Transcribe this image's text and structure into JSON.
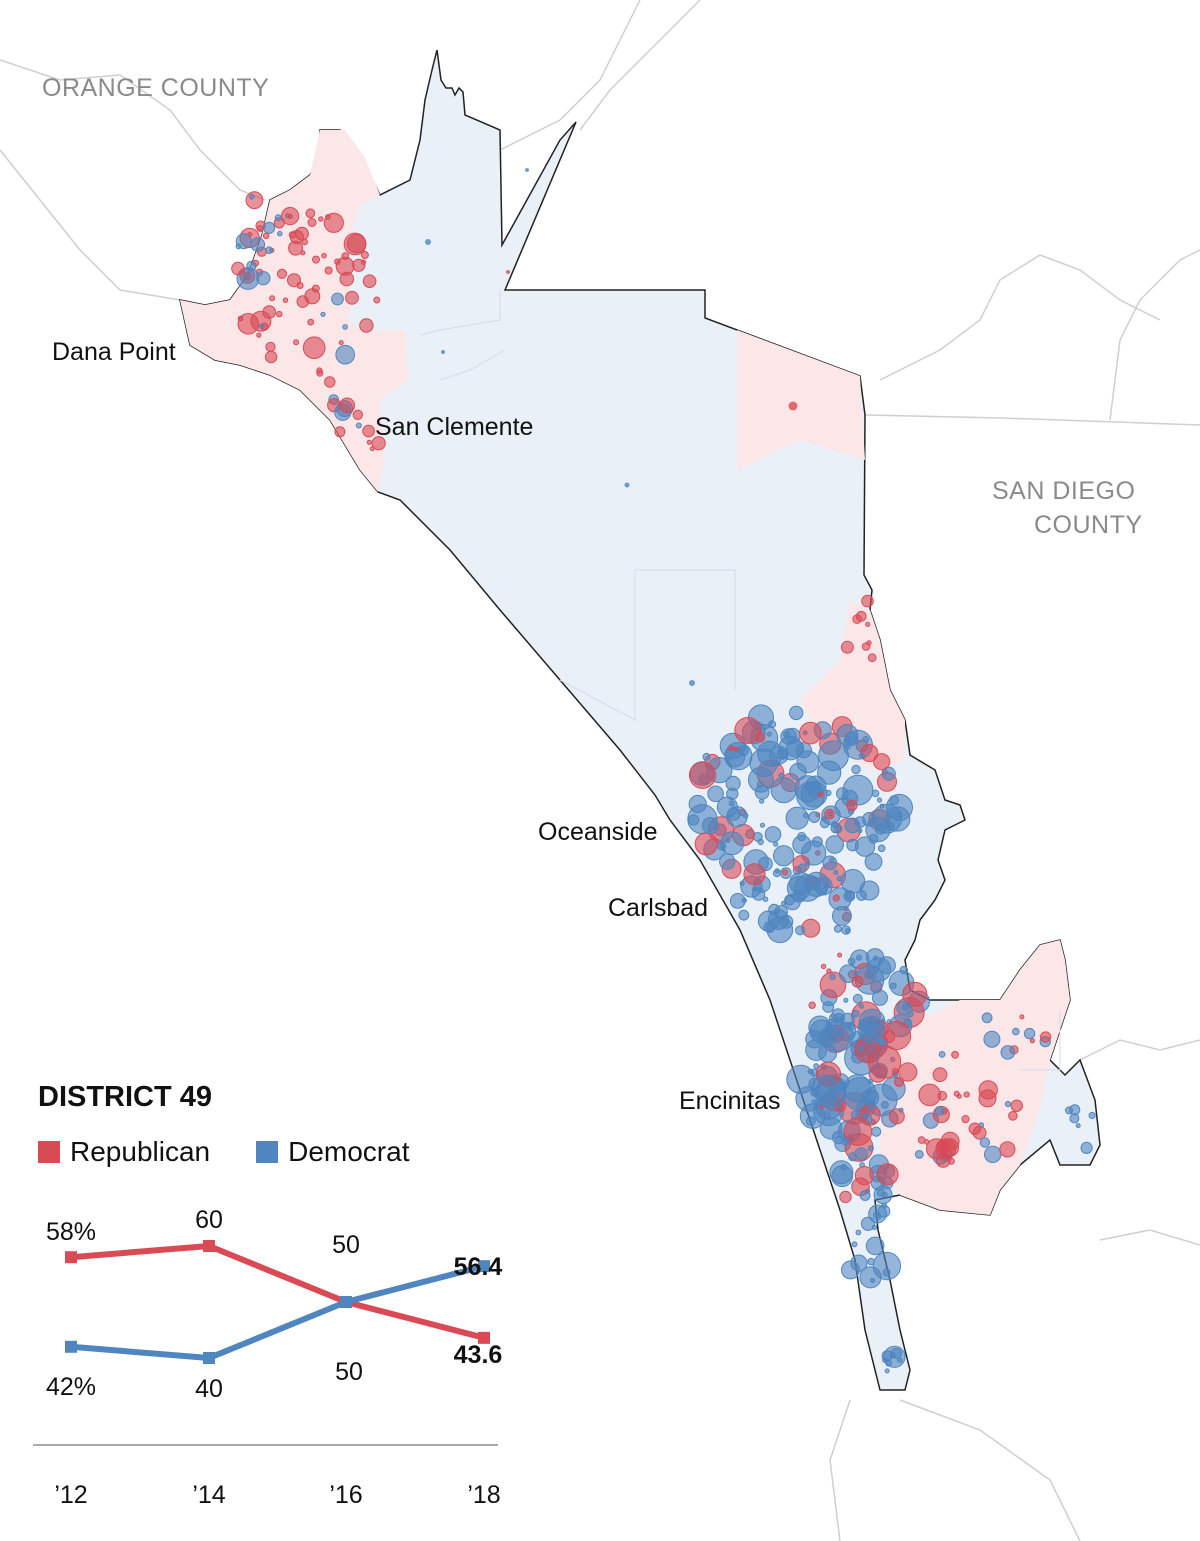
{
  "map": {
    "county_labels": [
      "ORANGE COUNTY",
      "SAN DIEGO",
      "COUNTY"
    ],
    "place_labels": [
      "Dana Point",
      "San Clemente",
      "Oceanside",
      "Carlsbad",
      "Encinitas"
    ],
    "colors": {
      "republican": "#d94a55",
      "democrat": "#4f86bf",
      "district_fill_neutral": "#e9f0f7",
      "district_fill_red": "#fbe6e8",
      "outline": "#222222",
      "county_lines": "#cfcfcf"
    }
  },
  "legend": {
    "title": "DISTRICT 49",
    "items": [
      {
        "label": "Republican",
        "color": "#d94a55"
      },
      {
        "label": "Democrat",
        "color": "#4f86bf"
      }
    ]
  },
  "chart_data": {
    "type": "line",
    "categories": [
      "’12",
      "’14",
      "’16",
      "’18"
    ],
    "series": [
      {
        "name": "Republican",
        "color": "#d94a55",
        "values": [
          58,
          60,
          50,
          43.6
        ],
        "labels": [
          "58%",
          "60",
          "50",
          "43.6"
        ]
      },
      {
        "name": "Democrat",
        "color": "#4f86bf",
        "values": [
          42,
          40,
          50,
          56.4
        ],
        "labels": [
          "42%",
          "40",
          "50",
          "56.4"
        ]
      }
    ],
    "ylim": [
      30,
      70
    ]
  }
}
